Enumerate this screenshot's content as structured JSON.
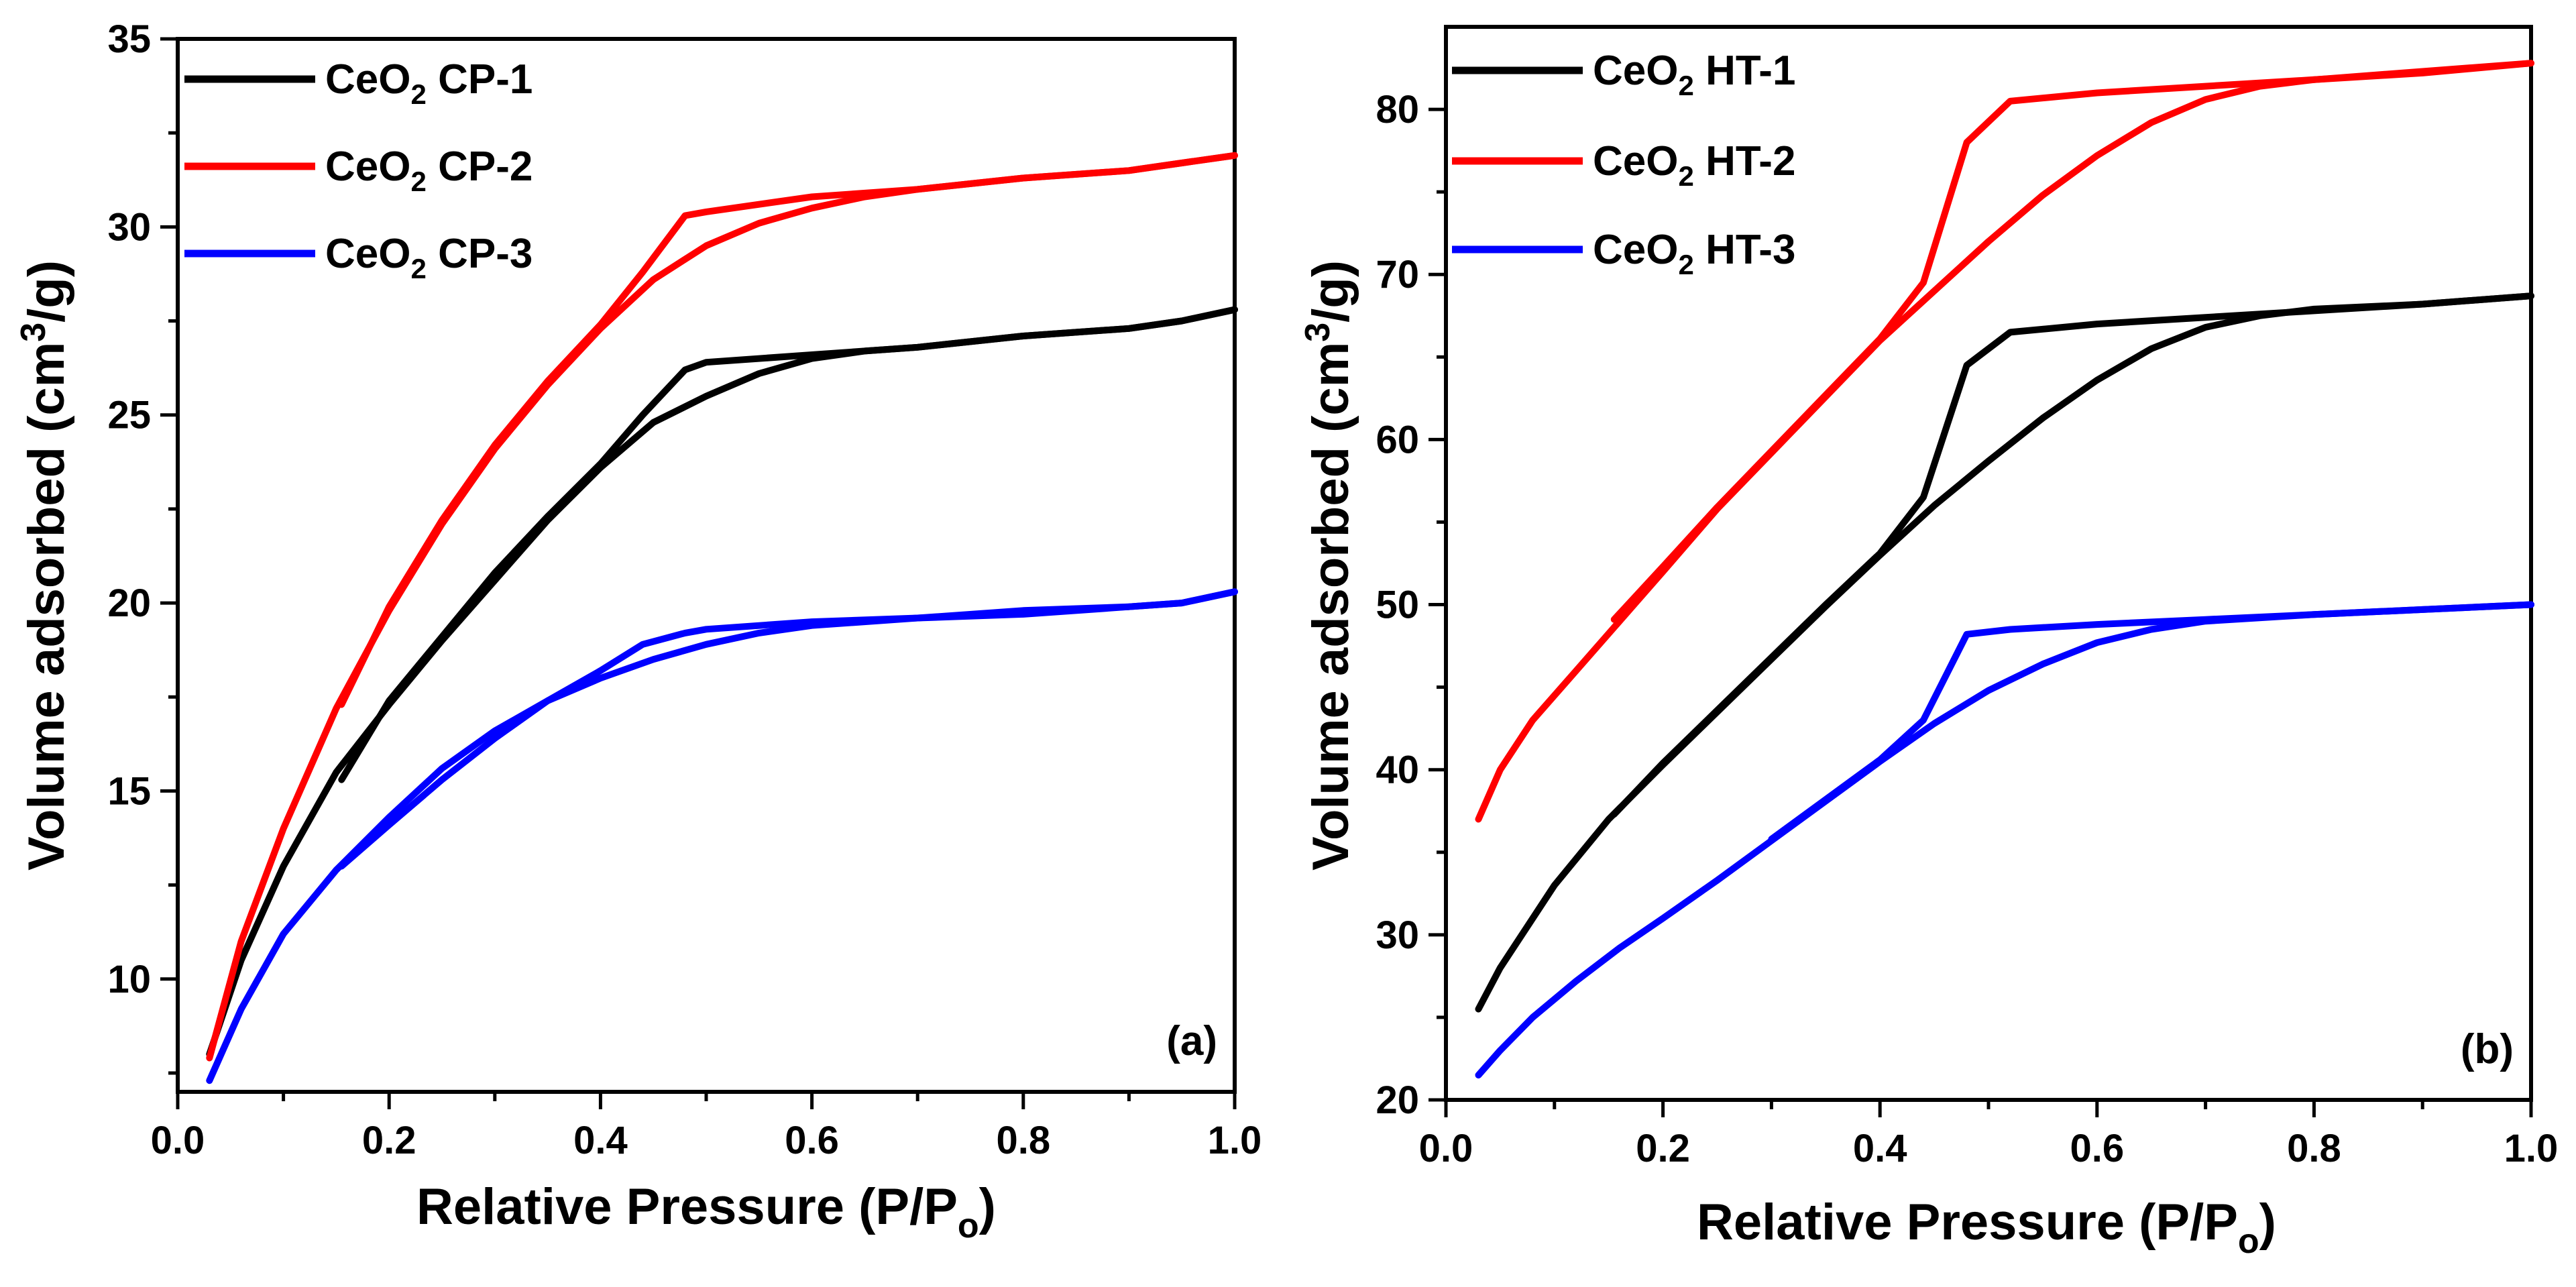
{
  "chart_data": [
    {
      "type": "line",
      "panel_label": "(a)",
      "xlabel": "Relative Pressure (P/P",
      "xlabel_sub": "o",
      "xlabel_end": ")",
      "ylabel": "Volume adsorbed (cm",
      "ylabel_sup": "3",
      "ylabel_end": "/g)",
      "xlim": [
        0.0,
        1.0
      ],
      "ylim": [
        7.0,
        35.0
      ],
      "xticks": [
        "0.0",
        "0.2",
        "0.4",
        "0.6",
        "0.8",
        "1.0"
      ],
      "yticks": [
        "10",
        "15",
        "20",
        "25",
        "30",
        "35"
      ],
      "legend_position": "top-left",
      "series": [
        {
          "name": "CeO",
          "name_sub": "2",
          "name_tail": " CP-1",
          "color": "#000000",
          "adsorption": [
            [
              0.03,
              8.0
            ],
            [
              0.06,
              10.5
            ],
            [
              0.1,
              13.0
            ],
            [
              0.15,
              15.5
            ],
            [
              0.2,
              17.3
            ],
            [
              0.25,
              19.0
            ],
            [
              0.3,
              20.6
            ],
            [
              0.35,
              22.2
            ],
            [
              0.4,
              23.6
            ],
            [
              0.45,
              24.8
            ],
            [
              0.5,
              25.5
            ],
            [
              0.55,
              26.1
            ],
            [
              0.6,
              26.5
            ],
            [
              0.65,
              26.7
            ],
            [
              0.7,
              26.8
            ],
            [
              0.8,
              27.1
            ],
            [
              0.9,
              27.3
            ],
            [
              0.95,
              27.5
            ],
            [
              1.0,
              27.8
            ]
          ],
          "desorption": [
            [
              1.0,
              27.8
            ],
            [
              0.95,
              27.5
            ],
            [
              0.9,
              27.3
            ],
            [
              0.8,
              27.1
            ],
            [
              0.7,
              26.8
            ],
            [
              0.6,
              26.6
            ],
            [
              0.5,
              26.4
            ],
            [
              0.48,
              26.2
            ],
            [
              0.44,
              25.0
            ],
            [
              0.4,
              23.7
            ],
            [
              0.35,
              22.3
            ],
            [
              0.3,
              20.8
            ],
            [
              0.25,
              19.1
            ],
            [
              0.2,
              17.4
            ],
            [
              0.155,
              15.3
            ]
          ]
        },
        {
          "name": "CeO",
          "name_sub": "2",
          "name_tail": " CP-2",
          "color": "#ff0000",
          "adsorption": [
            [
              0.03,
              7.9
            ],
            [
              0.06,
              11.0
            ],
            [
              0.1,
              14.0
            ],
            [
              0.15,
              17.2
            ],
            [
              0.2,
              19.8
            ],
            [
              0.25,
              22.1
            ],
            [
              0.3,
              24.1
            ],
            [
              0.35,
              25.8
            ],
            [
              0.4,
              27.3
            ],
            [
              0.45,
              28.6
            ],
            [
              0.5,
              29.5
            ],
            [
              0.55,
              30.1
            ],
            [
              0.6,
              30.5
            ],
            [
              0.65,
              30.8
            ],
            [
              0.7,
              31.0
            ],
            [
              0.8,
              31.3
            ],
            [
              0.9,
              31.5
            ],
            [
              0.95,
              31.7
            ],
            [
              1.0,
              31.9
            ]
          ],
          "desorption": [
            [
              1.0,
              31.9
            ],
            [
              0.95,
              31.7
            ],
            [
              0.9,
              31.5
            ],
            [
              0.8,
              31.3
            ],
            [
              0.7,
              31.0
            ],
            [
              0.6,
              30.8
            ],
            [
              0.5,
              30.4
            ],
            [
              0.48,
              30.3
            ],
            [
              0.44,
              28.8
            ],
            [
              0.4,
              27.4
            ],
            [
              0.35,
              25.9
            ],
            [
              0.3,
              24.2
            ],
            [
              0.25,
              22.2
            ],
            [
              0.2,
              19.9
            ],
            [
              0.155,
              17.3
            ]
          ]
        },
        {
          "name": "CeO",
          "name_sub": "2",
          "name_tail": " CP-3",
          "color": "#0000ff",
          "adsorption": [
            [
              0.03,
              7.3
            ],
            [
              0.06,
              9.2
            ],
            [
              0.1,
              11.2
            ],
            [
              0.15,
              12.9
            ],
            [
              0.2,
              14.3
            ],
            [
              0.25,
              15.6
            ],
            [
              0.3,
              16.6
            ],
            [
              0.35,
              17.4
            ],
            [
              0.4,
              18.0
            ],
            [
              0.45,
              18.5
            ],
            [
              0.5,
              18.9
            ],
            [
              0.55,
              19.2
            ],
            [
              0.6,
              19.4
            ],
            [
              0.7,
              19.6
            ],
            [
              0.8,
              19.7
            ],
            [
              0.9,
              19.9
            ],
            [
              0.95,
              20.0
            ],
            [
              1.0,
              20.3
            ]
          ],
          "desorption": [
            [
              1.0,
              20.3
            ],
            [
              0.95,
              20.0
            ],
            [
              0.9,
              19.9
            ],
            [
              0.8,
              19.8
            ],
            [
              0.7,
              19.6
            ],
            [
              0.6,
              19.5
            ],
            [
              0.5,
              19.3
            ],
            [
              0.48,
              19.2
            ],
            [
              0.44,
              18.9
            ],
            [
              0.4,
              18.2
            ],
            [
              0.35,
              17.4
            ],
            [
              0.3,
              16.4
            ],
            [
              0.25,
              15.3
            ],
            [
              0.2,
              14.1
            ],
            [
              0.155,
              13.0
            ]
          ]
        }
      ]
    },
    {
      "type": "line",
      "panel_label": "(b)",
      "xlabel": "Relative Pressure (P/P",
      "xlabel_sub": "o",
      "xlabel_end": ")",
      "ylabel": "Volume adsorbed (cm",
      "ylabel_sup": "3",
      "ylabel_end": "/g)",
      "xlim": [
        0.0,
        1.0
      ],
      "ylim": [
        20.0,
        85.0
      ],
      "xticks": [
        "0.0",
        "0.2",
        "0.4",
        "0.6",
        "0.8",
        "1.0"
      ],
      "yticks": [
        "20",
        "30",
        "40",
        "50",
        "60",
        "70",
        "80"
      ],
      "legend_position": "top-left",
      "series": [
        {
          "name": "CeO",
          "name_sub": "2",
          "name_tail": " HT-1",
          "color": "#000000",
          "adsorption": [
            [
              0.03,
              25.5
            ],
            [
              0.05,
              28.0
            ],
            [
              0.1,
              33.0
            ],
            [
              0.15,
              37.0
            ],
            [
              0.2,
              40.3
            ],
            [
              0.25,
              43.5
            ],
            [
              0.3,
              46.7
            ],
            [
              0.35,
              49.9
            ],
            [
              0.4,
              53.0
            ],
            [
              0.45,
              56.0
            ],
            [
              0.5,
              58.7
            ],
            [
              0.55,
              61.3
            ],
            [
              0.6,
              63.6
            ],
            [
              0.65,
              65.5
            ],
            [
              0.7,
              66.8
            ],
            [
              0.75,
              67.5
            ],
            [
              0.8,
              67.9
            ],
            [
              0.9,
              68.2
            ],
            [
              1.0,
              68.7
            ]
          ],
          "desorption": [
            [
              1.0,
              68.7
            ],
            [
              0.9,
              68.2
            ],
            [
              0.8,
              67.8
            ],
            [
              0.7,
              67.4
            ],
            [
              0.6,
              67.0
            ],
            [
              0.52,
              66.5
            ],
            [
              0.48,
              64.5
            ],
            [
              0.44,
              56.5
            ],
            [
              0.4,
              53.1
            ],
            [
              0.35,
              50.0
            ],
            [
              0.3,
              46.8
            ],
            [
              0.25,
              43.6
            ],
            [
              0.2,
              40.4
            ],
            [
              0.155,
              37.3
            ]
          ]
        },
        {
          "name": "CeO",
          "name_sub": "2",
          "name_tail": " HT-2",
          "color": "#ff0000",
          "adsorption": [
            [
              0.03,
              37.0
            ],
            [
              0.05,
              40.0
            ],
            [
              0.08,
              43.0
            ],
            [
              0.12,
              46.0
            ],
            [
              0.16,
              49.0
            ],
            [
              0.2,
              52.0
            ],
            [
              0.25,
              55.8
            ],
            [
              0.3,
              59.2
            ],
            [
              0.35,
              62.6
            ],
            [
              0.4,
              66.0
            ],
            [
              0.45,
              69.0
            ],
            [
              0.5,
              72.0
            ],
            [
              0.55,
              74.8
            ],
            [
              0.6,
              77.2
            ],
            [
              0.65,
              79.2
            ],
            [
              0.7,
              80.6
            ],
            [
              0.75,
              81.4
            ],
            [
              0.8,
              81.8
            ],
            [
              0.9,
              82.3
            ],
            [
              1.0,
              82.8
            ]
          ],
          "desorption": [
            [
              1.0,
              82.8
            ],
            [
              0.9,
              82.2
            ],
            [
              0.8,
              81.8
            ],
            [
              0.7,
              81.4
            ],
            [
              0.6,
              81.0
            ],
            [
              0.52,
              80.5
            ],
            [
              0.48,
              78.0
            ],
            [
              0.44,
              69.5
            ],
            [
              0.4,
              66.1
            ],
            [
              0.35,
              62.7
            ],
            [
              0.3,
              59.3
            ],
            [
              0.25,
              55.9
            ],
            [
              0.2,
              52.3
            ],
            [
              0.155,
              49.1
            ]
          ]
        },
        {
          "name": "CeO",
          "name_sub": "2",
          "name_tail": " HT-3",
          "color": "#0000ff",
          "adsorption": [
            [
              0.03,
              21.5
            ],
            [
              0.05,
              23.0
            ],
            [
              0.08,
              25.0
            ],
            [
              0.12,
              27.2
            ],
            [
              0.16,
              29.2
            ],
            [
              0.2,
              31.0
            ],
            [
              0.25,
              33.3
            ],
            [
              0.3,
              35.7
            ],
            [
              0.35,
              38.1
            ],
            [
              0.4,
              40.5
            ],
            [
              0.45,
              42.8
            ],
            [
              0.5,
              44.8
            ],
            [
              0.55,
              46.4
            ],
            [
              0.6,
              47.7
            ],
            [
              0.65,
              48.5
            ],
            [
              0.7,
              49.0
            ],
            [
              0.8,
              49.4
            ],
            [
              0.9,
              49.7
            ],
            [
              1.0,
              50.0
            ]
          ],
          "desorption": [
            [
              1.0,
              50.0
            ],
            [
              0.9,
              49.7
            ],
            [
              0.8,
              49.4
            ],
            [
              0.7,
              49.1
            ],
            [
              0.6,
              48.8
            ],
            [
              0.52,
              48.5
            ],
            [
              0.48,
              48.2
            ],
            [
              0.44,
              43.0
            ],
            [
              0.4,
              40.6
            ],
            [
              0.35,
              38.2
            ],
            [
              0.3,
              35.8
            ]
          ]
        }
      ]
    }
  ]
}
